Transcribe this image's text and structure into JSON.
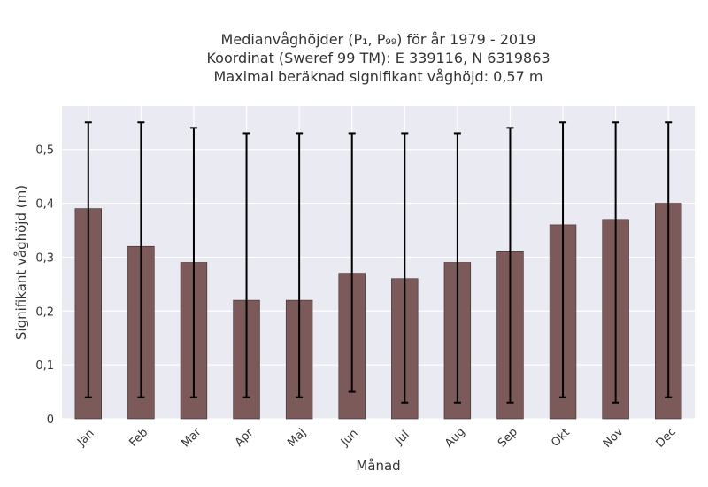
{
  "chart_data": {
    "type": "bar",
    "title_lines": [
      "Medianvåghöjder (P₁, P₉₉) för år 1979 - 2019",
      "Koordinat (Sweref 99 TM): E 339116, N 6319863",
      "Maximal beräknad signifikant våghöjd: 0,57 m"
    ],
    "xlabel": "Månad",
    "ylabel": "Signifikant våghöjd (m)",
    "categories": [
      "Jan",
      "Feb",
      "Mar",
      "Apr",
      "Maj",
      "Jun",
      "Jul",
      "Aug",
      "Sep",
      "Okt",
      "Nov",
      "Dec"
    ],
    "series": [
      {
        "values": [
          0.39,
          0.32,
          0.29,
          0.22,
          0.22,
          0.27,
          0.26,
          0.29,
          0.31,
          0.36,
          0.37,
          0.4
        ],
        "p1": [
          0.04,
          0.04,
          0.04,
          0.04,
          0.04,
          0.05,
          0.03,
          0.03,
          0.03,
          0.04,
          0.03,
          0.04
        ],
        "p99": [
          0.55,
          0.55,
          0.54,
          0.53,
          0.53,
          0.53,
          0.53,
          0.53,
          0.54,
          0.55,
          0.55,
          0.55
        ]
      }
    ],
    "ylim": [
      0,
      0.58
    ],
    "yticks": [
      0,
      0.1,
      0.2,
      0.3,
      0.4,
      0.5
    ],
    "ytick_labels": [
      "0",
      "0,1",
      "0,2",
      "0,3",
      "0,4",
      "0,5"
    ],
    "grid": true,
    "colors": {
      "bar": "#7d5a5a",
      "bar_edge": "#3a2a2a",
      "error": "#000000",
      "plot_bg": "#eaeaf2",
      "grid": "#ffffff"
    }
  }
}
